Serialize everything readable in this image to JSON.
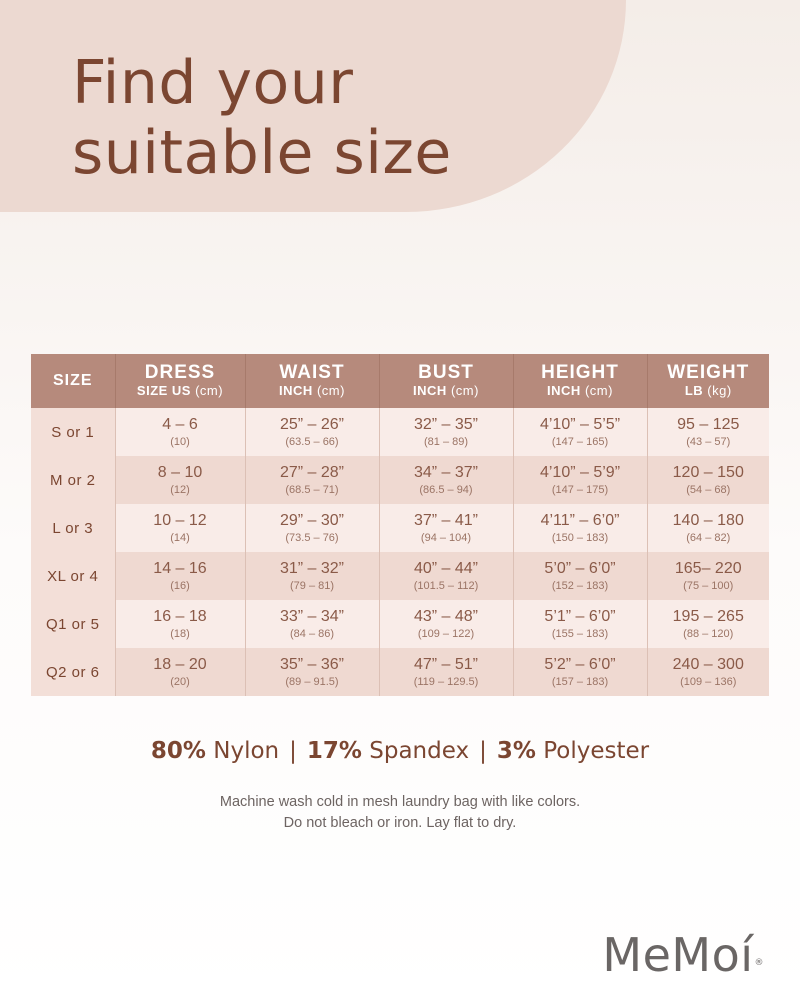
{
  "title": {
    "line1": "Find your",
    "line2": "suitable size"
  },
  "table": {
    "headers": [
      {
        "main": "SIZE",
        "sub": "",
        "unit": ""
      },
      {
        "main": "DRESS",
        "sub": "SIZE US",
        "unit": " (cm)"
      },
      {
        "main": "WAIST",
        "sub": "INCH",
        "unit": " (cm)"
      },
      {
        "main": "BUST",
        "sub": "INCH",
        "unit": " (cm)"
      },
      {
        "main": "HEIGHT",
        "sub": "INCH",
        "unit": " (cm)"
      },
      {
        "main": "WEIGHT",
        "sub": "LB",
        "unit": " (kg)"
      }
    ],
    "rows": [
      {
        "size": "S or 1",
        "cells": [
          {
            "main": "4 – 6",
            "sub": "(10)"
          },
          {
            "main": "25” – 26”",
            "sub": "(63.5 – 66)"
          },
          {
            "main": "32” – 35”",
            "sub": "(81 – 89)"
          },
          {
            "main": "4’10” – 5’5”",
            "sub": "(147 – 165)"
          },
          {
            "main": "95 – 125",
            "sub": "(43 – 57)"
          }
        ]
      },
      {
        "size": "M or 2",
        "cells": [
          {
            "main": "8 – 10",
            "sub": "(12)"
          },
          {
            "main": "27” – 28”",
            "sub": "(68.5 – 71)"
          },
          {
            "main": "34” – 37”",
            "sub": "(86.5 – 94)"
          },
          {
            "main": "4’10” – 5’9”",
            "sub": "(147 – 175)"
          },
          {
            "main": "120 – 150",
            "sub": "(54 – 68)"
          }
        ]
      },
      {
        "size": "L or 3",
        "cells": [
          {
            "main": "10 – 12",
            "sub": "(14)"
          },
          {
            "main": "29” – 30”",
            "sub": "(73.5 – 76)"
          },
          {
            "main": "37” – 41”",
            "sub": "(94 – 104)"
          },
          {
            "main": "4’11” – 6’0”",
            "sub": "(150 – 183)"
          },
          {
            "main": "140 – 180",
            "sub": "(64 – 82)"
          }
        ]
      },
      {
        "size": "XL or 4",
        "cells": [
          {
            "main": "14 – 16",
            "sub": "(16)"
          },
          {
            "main": "31” – 32”",
            "sub": "(79 – 81)"
          },
          {
            "main": "40” – 44”",
            "sub": "(101.5 – 112)"
          },
          {
            "main": "5’0” – 6’0”",
            "sub": "(152 – 183)"
          },
          {
            "main": "165– 220",
            "sub": "(75 – 100)"
          }
        ]
      },
      {
        "size": "Q1 or 5",
        "cells": [
          {
            "main": "16 – 18",
            "sub": "(18)"
          },
          {
            "main": "33” – 34”",
            "sub": "(84 – 86)"
          },
          {
            "main": "43” – 48”",
            "sub": "(109 – 122)"
          },
          {
            "main": "5’1” – 6’0”",
            "sub": "(155 – 183)"
          },
          {
            "main": "195 – 265",
            "sub": "(88 – 120)"
          }
        ]
      },
      {
        "size": "Q2 or 6",
        "cells": [
          {
            "main": "18 – 20",
            "sub": "(20)"
          },
          {
            "main": "35” – 36”",
            "sub": "(89 – 91.5)"
          },
          {
            "main": "47” – 51”",
            "sub": "(119 – 129.5)"
          },
          {
            "main": "5’2” – 6’0”",
            "sub": "(157 – 183)"
          },
          {
            "main": "240 – 300",
            "sub": "(109 – 136)"
          }
        ]
      }
    ]
  },
  "fabric": [
    {
      "pct": "80%",
      "name": "Nylon"
    },
    {
      "pct": "17%",
      "name": "Spandex"
    },
    {
      "pct": "3%",
      "name": "Polyester"
    }
  ],
  "fabric_separator": "|",
  "care": {
    "line1": "Machine wash cold in mesh laundry bag with like colors.",
    "line2": "Do not bleach or iron. Lay flat to dry."
  },
  "logo": {
    "text": "MeMoí",
    "mark": "®"
  }
}
